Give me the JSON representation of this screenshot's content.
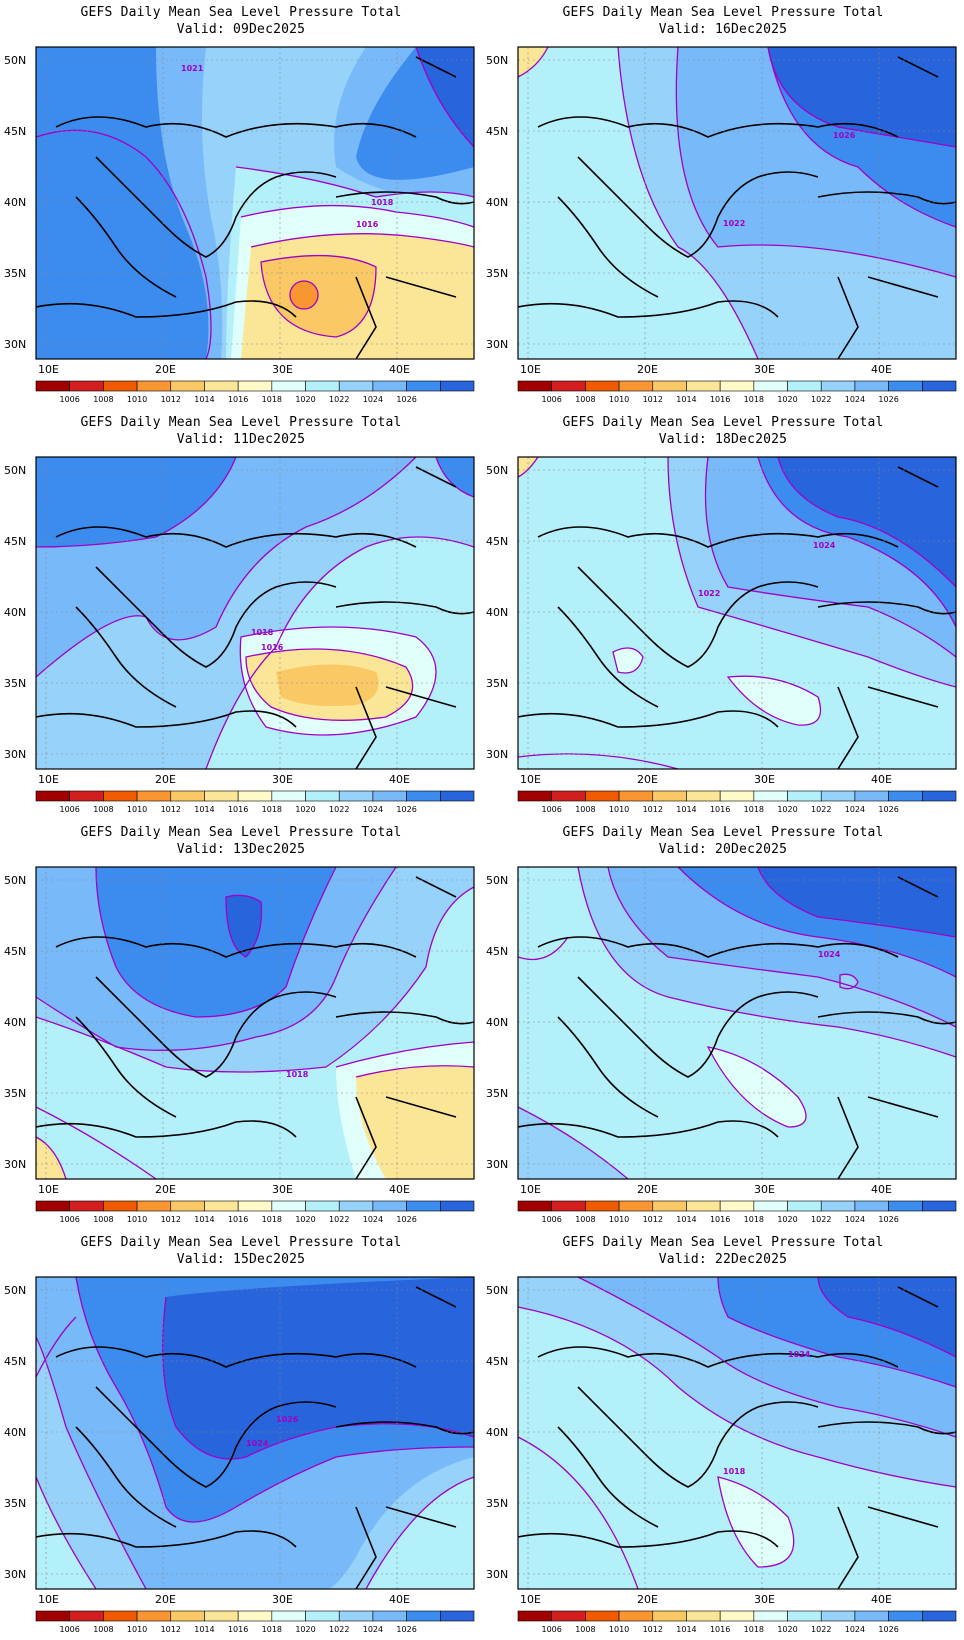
{
  "colorbar": {
    "levels": [
      "1006",
      "1008",
      "1010",
      "1012",
      "1014",
      "1016",
      "1018",
      "1020",
      "1022",
      "1024",
      "1026"
    ],
    "colors": [
      "#a00000",
      "#d21e1e",
      "#f05a00",
      "#fa9632",
      "#fac864",
      "#fae696",
      "#fffac8",
      "#e1fffa",
      "#b4f0fa",
      "#96d2fa",
      "#78b9fa",
      "#3c8cf0",
      "#2864dc"
    ]
  },
  "axes": {
    "lon_labels": [
      "10E",
      "20E",
      "30E",
      "40E"
    ],
    "lat_labels": [
      "50N",
      "45N",
      "40N",
      "35N",
      "30N"
    ]
  },
  "panels": [
    {
      "id": "p1",
      "title": "GEFS Daily Mean Sea Level Pressure Total",
      "valid": "Valid: 09Dec2025",
      "isobar_labels": [
        "1021",
        "1018",
        "1016"
      ]
    },
    {
      "id": "p2",
      "title": "GEFS Daily Mean Sea Level Pressure Total",
      "valid": "Valid: 16Dec2025",
      "isobar_labels": [
        "1026",
        "1022"
      ]
    },
    {
      "id": "p3",
      "title": "GEFS Daily Mean Sea Level Pressure Total",
      "valid": "Valid: 11Dec2025",
      "isobar_labels": [
        "1018",
        "1016"
      ]
    },
    {
      "id": "p4",
      "title": "GEFS Daily Mean Sea Level Pressure Total",
      "valid": "Valid: 18Dec2025",
      "isobar_labels": [
        "1024",
        "1022"
      ]
    },
    {
      "id": "p5",
      "title": "GEFS Daily Mean Sea Level Pressure Total",
      "valid": "Valid: 13Dec2025",
      "isobar_labels": [
        "1018"
      ]
    },
    {
      "id": "p6",
      "title": "GEFS Daily Mean Sea Level Pressure Total",
      "valid": "Valid: 20Dec2025",
      "isobar_labels": [
        "1024"
      ]
    },
    {
      "id": "p7",
      "title": "GEFS Daily Mean Sea Level Pressure Total",
      "valid": "Valid: 15Dec2025",
      "isobar_labels": [
        "1026",
        "1024"
      ]
    },
    {
      "id": "p8",
      "title": "GEFS Daily Mean Sea Level Pressure Total",
      "valid": "Valid: 22Dec2025",
      "isobar_labels": [
        "1024",
        "1018"
      ]
    }
  ]
}
